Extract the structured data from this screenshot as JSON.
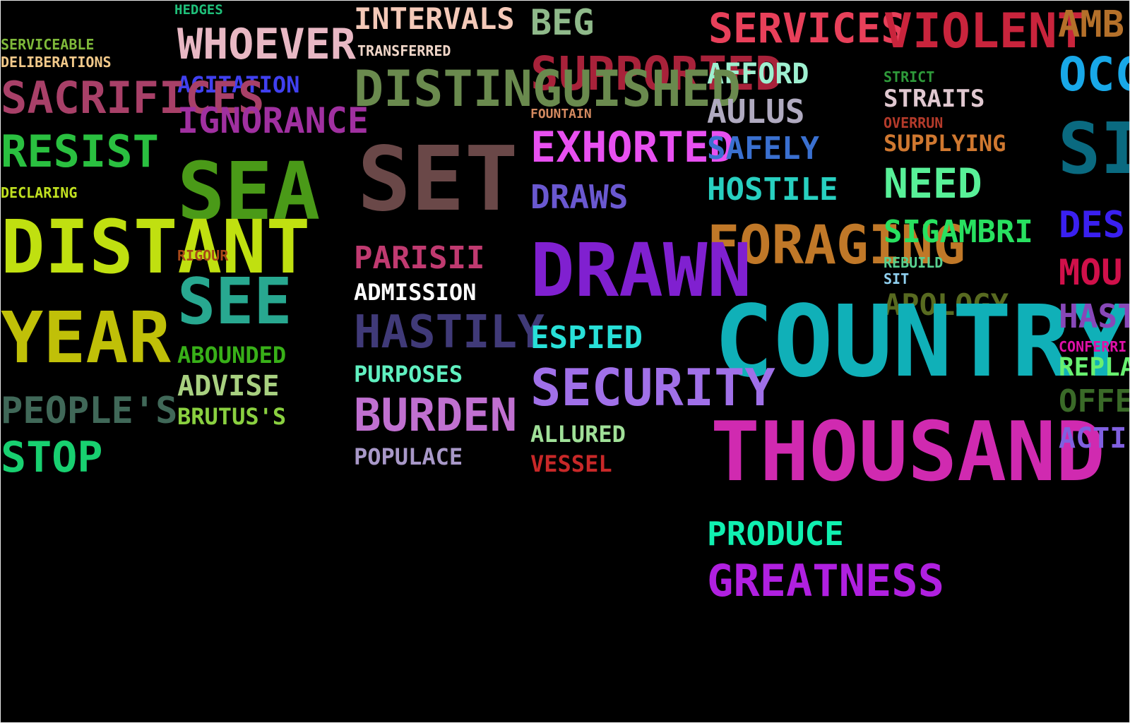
{
  "words": [
    {
      "text": "HEDGES",
      "color": "#1fc07a"
    },
    {
      "text": "INTERVALS",
      "color": "#f4c9b8"
    },
    {
      "text": "BEG",
      "color": "#8fb98a"
    },
    {
      "text": "SERVICES",
      "color": "#e8405a"
    },
    {
      "text": "VIOLENT",
      "color": "#c9243c"
    },
    {
      "text": "AMB",
      "color": "#b4702a"
    },
    {
      "text": "WHOEVER",
      "color": "#e8b8c4"
    },
    {
      "text": "SERVICEABLE",
      "color": "#7fb93a"
    },
    {
      "text": "TRANSFERRED",
      "color": "#f0d6c8"
    },
    {
      "text": "DELIBERATIONS",
      "color": "#f2c98a"
    },
    {
      "text": "SUPPORTED",
      "color": "#a8223a"
    },
    {
      "text": "AFFORD",
      "color": "#9ef0d0"
    },
    {
      "text": "STRICT",
      "color": "#2e9a3a"
    },
    {
      "text": "OCC",
      "color": "#18a8e8"
    },
    {
      "text": "AGITATION",
      "color": "#4040f0"
    },
    {
      "text": "DISTINGUISHED",
      "color": "#6a8a4e"
    },
    {
      "text": "SACRIFICES",
      "color": "#a84068"
    },
    {
      "text": "STRAITS",
      "color": "#e0c8d0"
    },
    {
      "text": "AULUS",
      "color": "#b0aac0"
    },
    {
      "text": "IGNORANCE",
      "color": "#a030a0"
    },
    {
      "text": "FOUNTAIN",
      "color": "#d48a60"
    },
    {
      "text": "OVERRUN",
      "color": "#b43a2a"
    },
    {
      "text": "RESIST",
      "color": "#2ac040"
    },
    {
      "text": "EXHORTED",
      "color": "#e850f0"
    },
    {
      "text": "SAFELY",
      "color": "#3a70d0"
    },
    {
      "text": "SUPPLYING",
      "color": "#d07830"
    },
    {
      "text": "SI",
      "color": "#0a6a80"
    },
    {
      "text": "SET",
      "color": "#6a4848"
    },
    {
      "text": "SEA",
      "color": "#4a9a18"
    },
    {
      "text": "DECLARING",
      "color": "#c0e020"
    },
    {
      "text": "DRAWS",
      "color": "#6a58d0"
    },
    {
      "text": "HOSTILE",
      "color": "#28d0c0"
    },
    {
      "text": "NEED",
      "color": "#58f098"
    },
    {
      "text": "FORAGING",
      "color": "#c07828"
    },
    {
      "text": "SIGAMBRI",
      "color": "#28e060"
    },
    {
      "text": "DES",
      "color": "#3a20f0"
    },
    {
      "text": "DISTANT",
      "color": "#c0e010"
    },
    {
      "text": "DRAWN",
      "color": "#8020d0"
    },
    {
      "text": "RIGOUR",
      "color": "#a84818"
    },
    {
      "text": "PARISII",
      "color": "#c03a70"
    },
    {
      "text": "REBUILD",
      "color": "#58d090"
    },
    {
      "text": "MOU",
      "color": "#d0104a"
    },
    {
      "text": "SIT",
      "color": "#90d0f0"
    },
    {
      "text": "ADMISSION",
      "color": "#ffffff"
    },
    {
      "text": "SEE",
      "color": "#28a890"
    },
    {
      "text": "APOLOGY",
      "color": "#586a20"
    },
    {
      "text": "COUNTRY",
      "color": "#10b0b8"
    },
    {
      "text": "HAST",
      "color": "#8848b8"
    },
    {
      "text": "YEAR",
      "color": "#c0c008"
    },
    {
      "text": "HASTILY",
      "color": "#403a78"
    },
    {
      "text": "ESPIED",
      "color": "#28e0d8"
    },
    {
      "text": "CONFERRI",
      "color": "#e010a8"
    },
    {
      "text": "ABOUNDED",
      "color": "#38b018"
    },
    {
      "text": "PURPOSES",
      "color": "#60f0c0"
    },
    {
      "text": "REPLA",
      "color": "#68f070"
    },
    {
      "text": "SECURITY",
      "color": "#a070e8"
    },
    {
      "text": "ADVISE",
      "color": "#a8d080"
    },
    {
      "text": "OFFE",
      "color": "#3a6a28"
    },
    {
      "text": "BURDEN",
      "color": "#c070d0"
    },
    {
      "text": "PEOPLE'S",
      "color": "#406858"
    },
    {
      "text": "BRUTUS'S",
      "color": "#8ad040"
    },
    {
      "text": "THOUSAND",
      "color": "#d02ab0"
    },
    {
      "text": "ACTI",
      "color": "#8060e0"
    },
    {
      "text": "ALLURED",
      "color": "#a0e098"
    },
    {
      "text": "STOP",
      "color": "#18d070"
    },
    {
      "text": "POPULACE",
      "color": "#a898c8"
    },
    {
      "text": "VESSEL",
      "color": "#c82828"
    },
    {
      "text": "PRODUCE",
      "color": "#10f0b0"
    },
    {
      "text": "GREATNESS",
      "color": "#b020e0"
    }
  ]
}
